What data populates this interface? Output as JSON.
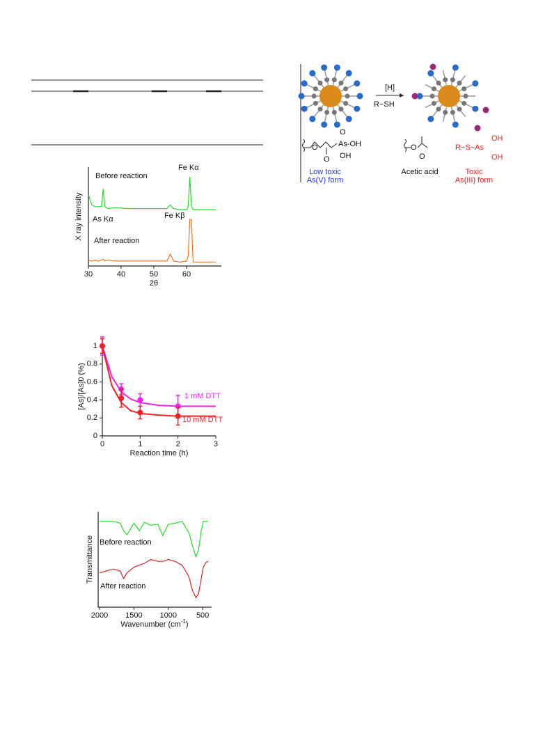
{
  "chart_data": [
    {
      "type": "line",
      "xlabel": "2θ",
      "ylabel": "X ray intensity",
      "xlim": [
        30,
        70
      ],
      "xticks": [
        30,
        40,
        50,
        60
      ],
      "ylim": [
        0,
        1
      ],
      "annotations": [
        "Before reaction",
        "Fe Kα",
        "As Kα",
        "Fe Kβ",
        "After reaction"
      ],
      "series": [
        {
          "color": "#22dd22",
          "x": [
            30,
            31,
            32,
            33,
            34,
            34.5,
            35,
            36,
            38,
            42,
            46,
            50,
            54,
            55,
            56,
            58,
            60,
            60.5,
            61,
            61.5,
            62,
            64,
            67,
            69
          ],
          "values": [
            0.72,
            0.62,
            0.6,
            0.6,
            0.6,
            0.78,
            0.6,
            0.58,
            0.59,
            0.58,
            0.58,
            0.58,
            0.58,
            0.62,
            0.58,
            0.57,
            0.57,
            0.6,
            0.9,
            0.6,
            0.57,
            0.57,
            0.57,
            0.57
          ]
        },
        {
          "color": "#ee7722",
          "x": [
            30,
            31,
            32,
            33,
            34,
            34.5,
            35,
            36,
            38,
            42,
            46,
            50,
            54,
            55,
            56,
            58,
            60,
            60.5,
            61,
            61.5,
            62,
            64,
            67,
            69
          ],
          "values": [
            0.06,
            0.05,
            0.06,
            0.05,
            0.06,
            0.07,
            0.05,
            0.06,
            0.05,
            0.05,
            0.05,
            0.05,
            0.05,
            0.12,
            0.05,
            0.04,
            0.05,
            0.1,
            0.47,
            0.47,
            0.04,
            0.04,
            0.04,
            0.04
          ]
        }
      ]
    },
    {
      "type": "scatter",
      "xlabel": "Reaction time (h)",
      "ylabel": "[As]/[As]0 (%)",
      "xlim": [
        0,
        3
      ],
      "xticks": [
        0,
        1,
        2,
        3
      ],
      "ylim": [
        0,
        1.1
      ],
      "yticks": [
        0,
        0.2,
        0.4,
        0.6,
        0.8,
        1
      ],
      "series": [
        {
          "name": "1 mM DTT",
          "color": "#ee22ee",
          "x": [
            0,
            0.5,
            1,
            2
          ],
          "values": [
            1,
            0.52,
            0.4,
            0.33
          ],
          "errors": [
            0.1,
            0.06,
            0.07,
            0.12
          ],
          "fit": {
            "x": [
              0,
              0.25,
              0.5,
              0.75,
              1,
              1.5,
              2,
              2.5,
              3
            ],
            "values": [
              1,
              0.66,
              0.49,
              0.41,
              0.37,
              0.34,
              0.33,
              0.33,
              0.33
            ]
          }
        },
        {
          "name": "10 mM DTT",
          "color": "#ee2222",
          "x": [
            0,
            0.5,
            1,
            2
          ],
          "values": [
            1,
            0.42,
            0.26,
            0.22
          ],
          "errors": [
            0.08,
            0.1,
            0.07,
            0.1
          ],
          "fit": {
            "x": [
              0,
              0.25,
              0.5,
              0.75,
              1,
              1.5,
              2,
              2.5,
              3
            ],
            "values": [
              1,
              0.56,
              0.37,
              0.28,
              0.25,
              0.23,
              0.22,
              0.22,
              0.22
            ]
          }
        }
      ]
    },
    {
      "type": "line",
      "xlabel": "Wavenumber (cm",
      "xlabel_sup": "-1",
      "xlabel_end": ")",
      "ylabel": "Transmittance",
      "xlim": [
        2000,
        400
      ],
      "xticks": [
        2000,
        1500,
        1000,
        500
      ],
      "ylim": [
        0,
        1
      ],
      "series": [
        {
          "name": "Before reaction",
          "color": "#22dd22",
          "x": [
            2000,
            1900,
            1800,
            1700,
            1650,
            1600,
            1500,
            1420,
            1350,
            1250,
            1150,
            1080,
            1000,
            900,
            800,
            700,
            650,
            600,
            560,
            520,
            490,
            450,
            420
          ],
          "values": [
            0.9,
            0.9,
            0.9,
            0.88,
            0.8,
            0.76,
            0.88,
            0.8,
            0.89,
            0.86,
            0.87,
            0.75,
            0.87,
            0.88,
            0.9,
            0.78,
            0.65,
            0.53,
            0.6,
            0.8,
            0.9,
            0.9,
            0.9
          ]
        },
        {
          "name": "After reaction",
          "color": "#dd2222",
          "x": [
            2000,
            1900,
            1800,
            1700,
            1650,
            1600,
            1500,
            1420,
            1350,
            1250,
            1150,
            1080,
            1000,
            900,
            800,
            700,
            650,
            600,
            560,
            520,
            490,
            450,
            420
          ],
          "values": [
            0.36,
            0.38,
            0.4,
            0.38,
            0.3,
            0.36,
            0.42,
            0.44,
            0.46,
            0.5,
            0.48,
            0.48,
            0.5,
            0.48,
            0.44,
            0.32,
            0.18,
            0.1,
            0.14,
            0.3,
            0.42,
            0.47,
            0.48
          ]
        }
      ]
    }
  ],
  "scheme": {
    "arrow_top": "[H]",
    "arrow_bottom": "R−SH",
    "left_group": [
      "As-OH",
      "OH",
      "O",
      "O"
    ],
    "middle_group": [
      "O",
      "O"
    ],
    "right_group": [
      "R−S−As",
      "OH",
      "OH"
    ],
    "left_caption": [
      "Low toxic",
      "As(V) form"
    ],
    "middle_caption": "Acetic acid",
    "right_caption": [
      "Toxic",
      "As(III) form"
    ]
  }
}
